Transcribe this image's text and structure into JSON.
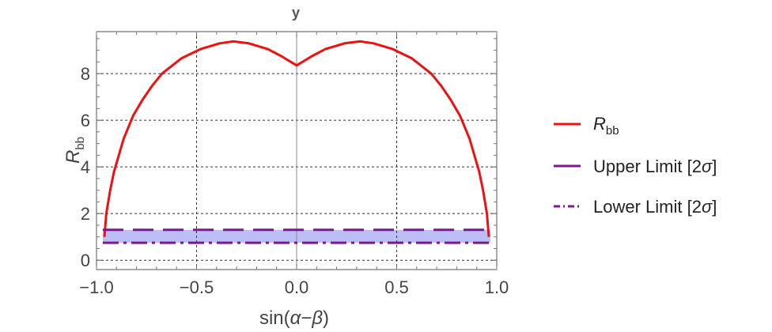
{
  "chart_data": {
    "type": "line",
    "title": "y",
    "xlabel_main": "sin(",
    "xlabel_alpha": "α",
    "xlabel_dash": "−",
    "xlabel_beta": "β",
    "xlabel_close": ")",
    "ylabel_main": "R",
    "ylabel_sub": "bb",
    "xlim": [
      -1.0,
      1.0
    ],
    "ylim": [
      -0.4,
      9.8
    ],
    "xticks": [
      -1.0,
      -0.5,
      0.0,
      0.5,
      1.0
    ],
    "xtick_labels": [
      "−1.0",
      "−0.5",
      "0.0",
      "0.5",
      "1.0"
    ],
    "yticks": [
      0,
      2,
      4,
      6,
      8
    ],
    "ytick_labels": [
      "0",
      "2",
      "4",
      "6",
      "8"
    ],
    "grid": true,
    "legend_position": "right",
    "band": {
      "lower": 0.75,
      "upper": 1.3,
      "color": "#b3b3f5"
    },
    "series": [
      {
        "name": "R",
        "name_sub": "bb",
        "color": "#ee1111",
        "style": "solid",
        "x": [
          -1.0,
          -0.99,
          -0.97,
          -0.95,
          -0.9,
          -0.85,
          -0.8,
          -0.75,
          -0.7,
          -0.6,
          -0.5,
          -0.4,
          -0.33,
          -0.25,
          -0.15,
          -0.08,
          0.0,
          0.08,
          0.15,
          0.25,
          0.33,
          0.4,
          0.5,
          0.6,
          0.7,
          0.75,
          0.8,
          0.85,
          0.9,
          0.95,
          0.97,
          0.99,
          1.0
        ],
        "y": [
          1.0,
          2.0,
          3.0,
          3.8,
          5.2,
          6.2,
          6.9,
          7.5,
          8.0,
          8.65,
          9.05,
          9.3,
          9.38,
          9.3,
          9.05,
          8.75,
          8.35,
          8.75,
          9.05,
          9.3,
          9.38,
          9.3,
          9.05,
          8.65,
          8.0,
          7.5,
          6.9,
          6.2,
          5.2,
          3.8,
          3.0,
          2.0,
          1.0
        ]
      },
      {
        "name": "Upper Limit [2",
        "name_sigma": "σ",
        "name_end": "]",
        "color": "#7b1a8c",
        "style": "dashed",
        "x": [
          -1.0,
          1.0
        ],
        "y": [
          1.3,
          1.3
        ]
      },
      {
        "name": "Lower Limit [2",
        "name_sigma": "σ",
        "name_end": "]",
        "color": "#7b1a8c",
        "style": "dashdot",
        "x": [
          -1.0,
          1.0
        ],
        "y": [
          0.75,
          0.75
        ]
      }
    ]
  }
}
